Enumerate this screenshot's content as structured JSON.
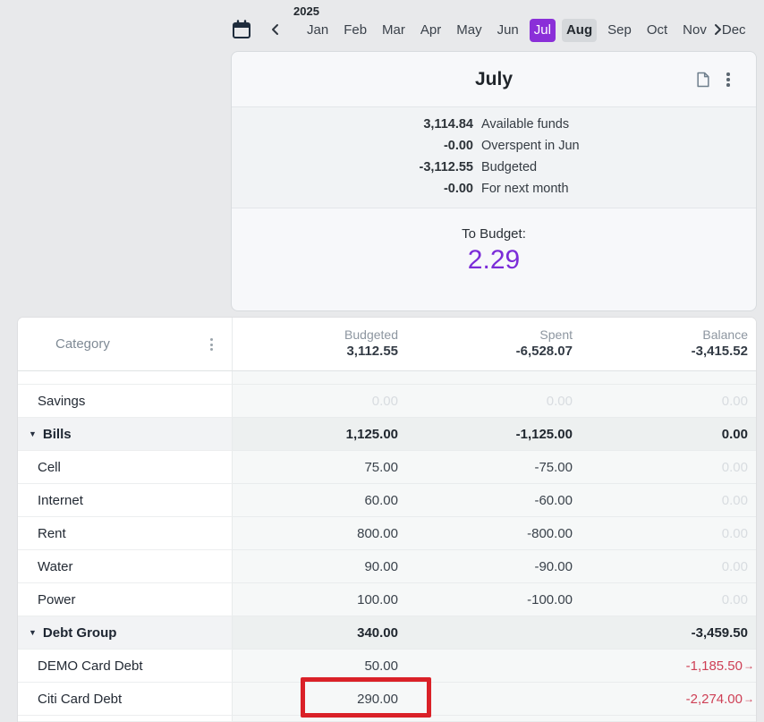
{
  "month_nav": {
    "year": "2025",
    "months": [
      "Jan",
      "Feb",
      "Mar",
      "Apr",
      "May",
      "Jun",
      "Jul",
      "Aug",
      "Sep",
      "Oct",
      "Nov",
      "Dec"
    ],
    "selected_month": "Jul",
    "highlighted_month": "Aug"
  },
  "month_card": {
    "title": "July",
    "summary": [
      {
        "amount": "3,114.84",
        "label": "Available funds"
      },
      {
        "amount": "-0.00",
        "label": "Overspent in Jun"
      },
      {
        "amount": "-3,112.55",
        "label": "Budgeted"
      },
      {
        "amount": "-0.00",
        "label": "For next month"
      }
    ],
    "to_budget": {
      "label": "To Budget:",
      "value": "2.29"
    }
  },
  "table": {
    "category_header": "Category",
    "columns": [
      {
        "label": "Budgeted",
        "total": "3,112.55"
      },
      {
        "label": "Spent",
        "total": "-6,528.07"
      },
      {
        "label": "Balance",
        "total": "-3,415.52"
      }
    ],
    "rows": [
      {
        "partial": true,
        "name": "",
        "cells": [
          {
            "text": ""
          },
          {
            "text": ""
          },
          {
            "text": ""
          }
        ]
      },
      {
        "name": "Savings",
        "cells": [
          {
            "text": "0.00",
            "style": "faded"
          },
          {
            "text": "0.00",
            "style": "faded"
          },
          {
            "text": "0.00",
            "style": "faded"
          }
        ]
      },
      {
        "name": "Bills",
        "group": true,
        "cells": [
          {
            "text": "1,125.00",
            "style": "bold"
          },
          {
            "text": "-1,125.00",
            "style": "bold"
          },
          {
            "text": "0.00",
            "style": "bold"
          }
        ]
      },
      {
        "name": "Cell",
        "cells": [
          {
            "text": "75.00"
          },
          {
            "text": "-75.00"
          },
          {
            "text": "0.00",
            "style": "faded"
          }
        ]
      },
      {
        "name": "Internet",
        "cells": [
          {
            "text": "60.00"
          },
          {
            "text": "-60.00"
          },
          {
            "text": "0.00",
            "style": "faded"
          }
        ]
      },
      {
        "name": "Rent",
        "cells": [
          {
            "text": "800.00"
          },
          {
            "text": "-800.00"
          },
          {
            "text": "0.00",
            "style": "faded"
          }
        ]
      },
      {
        "name": "Water",
        "cells": [
          {
            "text": "90.00"
          },
          {
            "text": "-90.00"
          },
          {
            "text": "0.00",
            "style": "faded"
          }
        ]
      },
      {
        "name": "Power",
        "cells": [
          {
            "text": "100.00"
          },
          {
            "text": "-100.00"
          },
          {
            "text": "0.00",
            "style": "faded"
          }
        ]
      },
      {
        "name": "Debt Group",
        "group": true,
        "cells": [
          {
            "text": "340.00",
            "style": "bold"
          },
          {
            "text": ""
          },
          {
            "text": "-3,459.50",
            "style": "bold"
          }
        ]
      },
      {
        "name": "DEMO Card Debt",
        "cells": [
          {
            "text": "50.00"
          },
          {
            "text": ""
          },
          {
            "text": "-1,185.50",
            "style": "red",
            "arrow": true
          }
        ]
      },
      {
        "name": "Citi Card Debt",
        "cells": [
          {
            "text": "290.00",
            "annotated": true
          },
          {
            "text": ""
          },
          {
            "text": "-2,274.00",
            "style": "red",
            "arrow": true
          }
        ]
      },
      {
        "partial": true,
        "name": "",
        "cells": [
          {
            "text": ""
          },
          {
            "text": ""
          },
          {
            "text": ""
          }
        ]
      }
    ]
  },
  "annotations": {
    "highlight_box_target": "290.00",
    "arrow_points_at": "2.29",
    "carryover_arrow_glyph": "→"
  },
  "icons": {
    "calendar": "calendar-icon",
    "prev_month": "chevron-left-icon",
    "next_month": "chevron-right-icon",
    "notes": "note-icon",
    "card_menu": "kebab-menu-icon",
    "category_menu": "kebab-menu-icon",
    "group_collapse": "triangle-down-icon"
  },
  "colors": {
    "accent_purple": "#8a2fd8",
    "to_budget_purple": "#7b2cd8",
    "negative_red": "#ce3f55",
    "annotation_red": "#da2128",
    "page_background": "#e8e9eb"
  }
}
